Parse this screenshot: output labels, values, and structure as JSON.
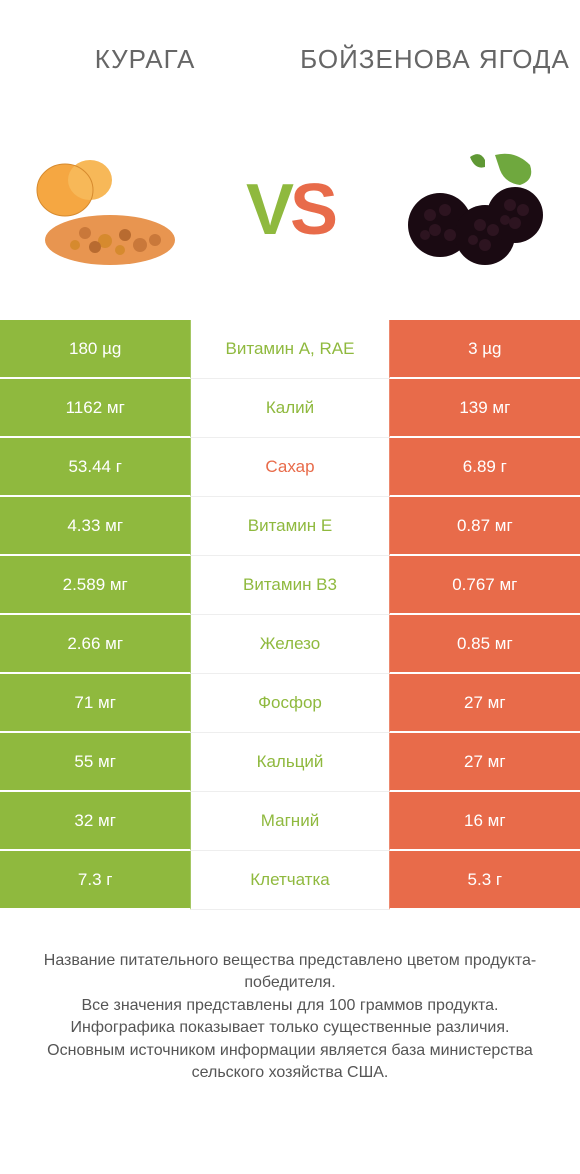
{
  "colors": {
    "green": "#8fb93e",
    "orange": "#e86b4a",
    "text": "#555555",
    "title": "#666666",
    "bg": "#ffffff"
  },
  "header": {
    "left": "КУРАГА",
    "right": "БОЙЗЕНОВА ЯГОДА"
  },
  "vs": {
    "v": "V",
    "s": "S"
  },
  "rows": [
    {
      "left": "180 µg",
      "mid": "Витамин A, RAE",
      "right": "3 µg",
      "winner": "left"
    },
    {
      "left": "1162 мг",
      "mid": "Калий",
      "right": "139 мг",
      "winner": "left"
    },
    {
      "left": "53.44 г",
      "mid": "Сахар",
      "right": "6.89 г",
      "winner": "right"
    },
    {
      "left": "4.33 мг",
      "mid": "Витамин E",
      "right": "0.87 мг",
      "winner": "left"
    },
    {
      "left": "2.589 мг",
      "mid": "Витамин B3",
      "right": "0.767 мг",
      "winner": "left"
    },
    {
      "left": "2.66 мг",
      "mid": "Железо",
      "right": "0.85 мг",
      "winner": "left"
    },
    {
      "left": "71 мг",
      "mid": "Фосфор",
      "right": "27 мг",
      "winner": "left"
    },
    {
      "left": "55 мг",
      "mid": "Кальций",
      "right": "27 мг",
      "winner": "left"
    },
    {
      "left": "32 мг",
      "mid": "Магний",
      "right": "16 мг",
      "winner": "left"
    },
    {
      "left": "7.3 г",
      "mid": "Клетчатка",
      "right": "5.3 г",
      "winner": "left"
    }
  ],
  "footer": {
    "l1": "Название питательного вещества представлено цветом продукта-победителя.",
    "l2": "Все значения представлены для 100 граммов продукта.",
    "l3": "Инфографика показывает только существенные различия.",
    "l4": "Основным источником информации является база министерства сельского хозяйства США."
  }
}
